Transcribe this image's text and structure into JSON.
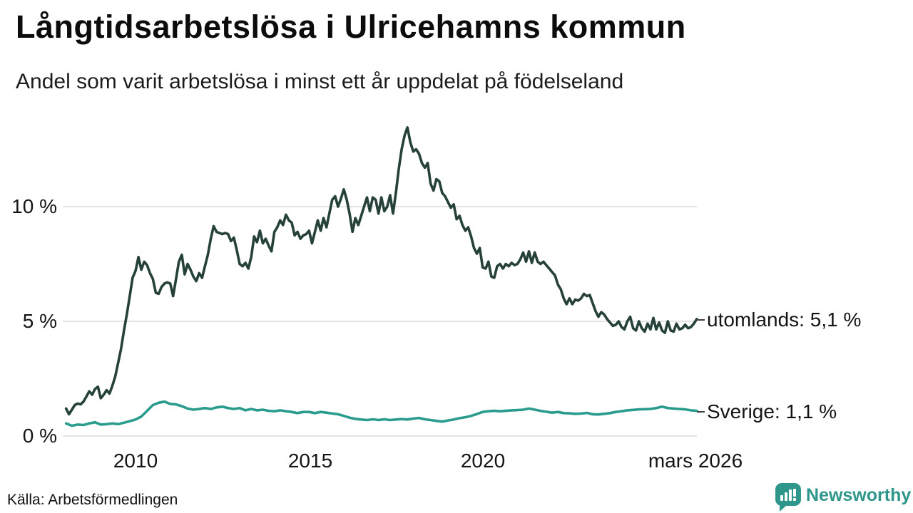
{
  "header": {
    "title": "Långtidsarbetslösa i Ulricehamns kommun",
    "subtitle": "Andel som varit arbetslösa i minst ett år uppdelat på födelseland"
  },
  "footer": {
    "source": "Källa: Arbetsförmedlingen",
    "brand": "Newsworthy"
  },
  "chart_data": {
    "type": "line",
    "x_unit": "decimal_year",
    "xlim": [
      2008,
      2026.25
    ],
    "ylim": [
      0,
      14
    ],
    "grid": "horizontal",
    "grid_color": "#e4e4e4",
    "legend": "end-of-line-labels",
    "yticks": [
      {
        "value": 0,
        "label": "0 %"
      },
      {
        "value": 5,
        "label": "5 %"
      },
      {
        "value": 10,
        "label": "10 %"
      }
    ],
    "xticks": [
      {
        "value": 2010,
        "label": "2010"
      },
      {
        "value": 2015,
        "label": "2015"
      },
      {
        "value": 2020,
        "label": "2020"
      },
      {
        "value": 2026.17,
        "label": "mars 2026"
      }
    ],
    "series": [
      {
        "name": "utomlands",
        "label": "utomlands: 5,1 %",
        "end_value": "5,1 %",
        "color": "#254139",
        "x_start": 2008,
        "x_step": 0.0833333,
        "values": [
          1.2,
          0.95,
          1.15,
          1.35,
          1.42,
          1.38,
          1.5,
          1.72,
          1.95,
          1.8,
          2.05,
          2.15,
          1.65,
          1.8,
          2.0,
          1.85,
          2.2,
          2.6,
          3.2,
          3.8,
          4.6,
          5.3,
          6.1,
          6.9,
          7.2,
          7.8,
          7.25,
          7.6,
          7.45,
          7.1,
          6.85,
          6.25,
          6.2,
          6.5,
          6.65,
          6.7,
          6.65,
          6.1,
          6.85,
          7.6,
          7.9,
          7.05,
          7.5,
          7.25,
          6.95,
          6.75,
          7.1,
          6.9,
          7.4,
          7.9,
          8.6,
          9.15,
          8.9,
          8.85,
          8.8,
          8.85,
          8.8,
          8.5,
          8.65,
          8.1,
          7.5,
          7.4,
          7.55,
          7.3,
          7.8,
          8.7,
          8.45,
          8.95,
          8.4,
          8.6,
          8.3,
          8.05,
          8.9,
          9.1,
          9.4,
          9.2,
          9.65,
          9.4,
          9.3,
          8.75,
          8.9,
          8.6,
          8.75,
          8.8,
          8.95,
          8.4,
          8.9,
          9.4,
          8.95,
          9.5,
          9.1,
          9.7,
          10.3,
          10.45,
          10.0,
          10.35,
          10.75,
          10.3,
          9.7,
          8.9,
          9.5,
          9.2,
          9.6,
          10.0,
          10.4,
          9.8,
          10.4,
          10.3,
          9.7,
          10.4,
          9.8,
          10.0,
          10.5,
          9.7,
          10.6,
          11.65,
          12.5,
          13.1,
          13.45,
          12.8,
          12.4,
          12.5,
          12.3,
          11.9,
          11.7,
          11.9,
          11.0,
          10.7,
          11.2,
          11.1,
          10.6,
          10.45,
          10.2,
          9.95,
          10.1,
          9.45,
          9.6,
          9.2,
          8.95,
          9.1,
          8.7,
          8.2,
          7.95,
          8.2,
          7.35,
          7.3,
          7.6,
          6.95,
          6.9,
          7.4,
          7.5,
          7.3,
          7.5,
          7.4,
          7.55,
          7.45,
          7.5,
          7.7,
          8.0,
          7.6,
          8.05,
          7.55,
          8.0,
          7.6,
          7.5,
          7.6,
          7.45,
          7.3,
          7.15,
          7.0,
          6.6,
          6.4,
          6.0,
          5.75,
          6.0,
          5.75,
          5.95,
          5.9,
          6.0,
          6.2,
          6.1,
          6.15,
          5.8,
          5.45,
          5.2,
          5.4,
          5.3,
          5.1,
          4.95,
          4.8,
          4.85,
          5.0,
          4.75,
          4.65,
          5.0,
          5.2,
          4.7,
          4.6,
          5.0,
          4.7,
          4.55,
          4.9,
          4.65,
          5.15,
          4.65,
          4.95,
          4.6,
          4.5,
          5.0,
          4.6,
          4.55,
          4.9,
          4.65,
          4.7,
          4.85,
          4.7,
          4.75,
          4.9,
          5.1
        ]
      },
      {
        "name": "Sverige",
        "label": "Sverige: 1,1 %",
        "end_value": "1,1 %",
        "color": "#2a9c8d",
        "x_start": 2008,
        "x_step": 0.1666667,
        "values": [
          0.55,
          0.45,
          0.5,
          0.48,
          0.55,
          0.6,
          0.5,
          0.52,
          0.55,
          0.52,
          0.58,
          0.65,
          0.72,
          0.85,
          1.1,
          1.35,
          1.45,
          1.5,
          1.4,
          1.38,
          1.3,
          1.2,
          1.15,
          1.18,
          1.22,
          1.18,
          1.25,
          1.28,
          1.22,
          1.18,
          1.22,
          1.12,
          1.18,
          1.12,
          1.15,
          1.1,
          1.08,
          1.12,
          1.08,
          1.05,
          1.0,
          1.05,
          1.05,
          1.0,
          1.05,
          1.02,
          0.98,
          0.95,
          0.88,
          0.8,
          0.75,
          0.72,
          0.7,
          0.73,
          0.7,
          0.73,
          0.7,
          0.72,
          0.74,
          0.72,
          0.76,
          0.79,
          0.73,
          0.7,
          0.66,
          0.63,
          0.68,
          0.72,
          0.78,
          0.82,
          0.88,
          0.96,
          1.05,
          1.08,
          1.1,
          1.08,
          1.1,
          1.12,
          1.13,
          1.15,
          1.2,
          1.15,
          1.1,
          1.06,
          1.02,
          1.05,
          1.0,
          0.99,
          0.97,
          0.98,
          1.01,
          0.95,
          0.94,
          0.97,
          1.0,
          1.05,
          1.08,
          1.12,
          1.14,
          1.16,
          1.17,
          1.18,
          1.22,
          1.28,
          1.22,
          1.2,
          1.18,
          1.16,
          1.12,
          1.1
        ]
      }
    ]
  }
}
